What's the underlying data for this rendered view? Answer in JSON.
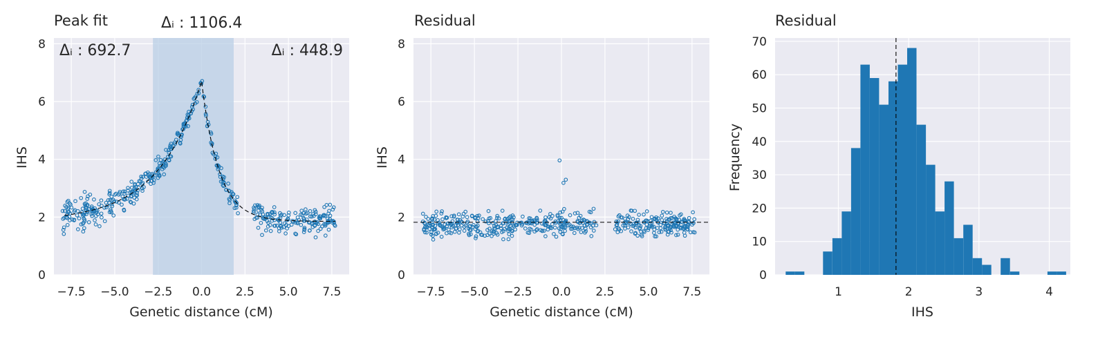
{
  "colors": {
    "background": "#eaeaf2",
    "grid": "#ffffff",
    "points": "#1f77b4",
    "bars": "#1f77b4",
    "shade": "#b9cfe6",
    "fit_line": "#000000"
  },
  "chart_data": [
    {
      "type": "scatter",
      "title": "Peak fit",
      "xlabel": "Genetic distance (cM)",
      "ylabel": "IHS",
      "xlim": [
        -8.5,
        8.5
      ],
      "ylim": [
        0,
        8.2
      ],
      "xticks": [
        "−7.5",
        "−5.0",
        "−2.5",
        "0.0",
        "2.5",
        "5.0",
        "7.5"
      ],
      "xtick_values": [
        -7.5,
        -5.0,
        -2.5,
        0.0,
        2.5,
        5.0,
        7.5
      ],
      "yticks": [
        "0",
        "2",
        "4",
        "6",
        "8"
      ],
      "ytick_values": [
        0,
        2,
        4,
        6,
        8
      ],
      "grid": true,
      "shaded_region": [
        -2.8,
        1.85
      ],
      "fit_curve": {
        "baseline": 1.85,
        "peak_x": 0.0,
        "peak_y": 6.7,
        "left_scale": 2.5,
        "right_scale": 1.0
      },
      "annotations": {
        "top": "Δᵢ : 1106.4",
        "left": "Δᵢ : 692.7",
        "right": "Δᵢ : 448.9"
      }
    },
    {
      "type": "scatter",
      "title": "Residual",
      "xlabel": "Genetic distance (cM)",
      "ylabel": "IHS",
      "xlim": [
        -8.5,
        8.5
      ],
      "ylim": [
        0,
        8.2
      ],
      "xticks": [
        "−7.5",
        "−5.0",
        "−2.5",
        "0.0",
        "2.5",
        "5.0",
        "7.5"
      ],
      "xtick_values": [
        -7.5,
        -5.0,
        -2.5,
        0.0,
        2.5,
        5.0,
        7.5
      ],
      "yticks": [
        "0",
        "2",
        "4",
        "6",
        "8"
      ],
      "ytick_values": [
        0,
        2,
        4,
        6,
        8
      ],
      "grid": true,
      "reference_line": 1.82
    },
    {
      "type": "bar",
      "title": "Residual",
      "xlabel": "IHS",
      "ylabel": "Frequency",
      "xlim": [
        0.1,
        4.3
      ],
      "ylim": [
        0,
        71
      ],
      "xticks": [
        "1",
        "2",
        "3",
        "4"
      ],
      "xtick_values": [
        1,
        2,
        3,
        4
      ],
      "yticks": [
        "0",
        "10",
        "20",
        "30",
        "40",
        "50",
        "60",
        "70"
      ],
      "ytick_values": [
        0,
        10,
        20,
        30,
        40,
        50,
        60,
        70
      ],
      "grid": true,
      "reference_line": 1.82,
      "bin_start": 0.25,
      "bin_width": 0.133,
      "counts": [
        1,
        1,
        0,
        0,
        7,
        11,
        19,
        38,
        63,
        59,
        51,
        58,
        63,
        68,
        45,
        33,
        19,
        28,
        11,
        15,
        5,
        3,
        0,
        5,
        1,
        0,
        0,
        0,
        1,
        1
      ]
    }
  ]
}
